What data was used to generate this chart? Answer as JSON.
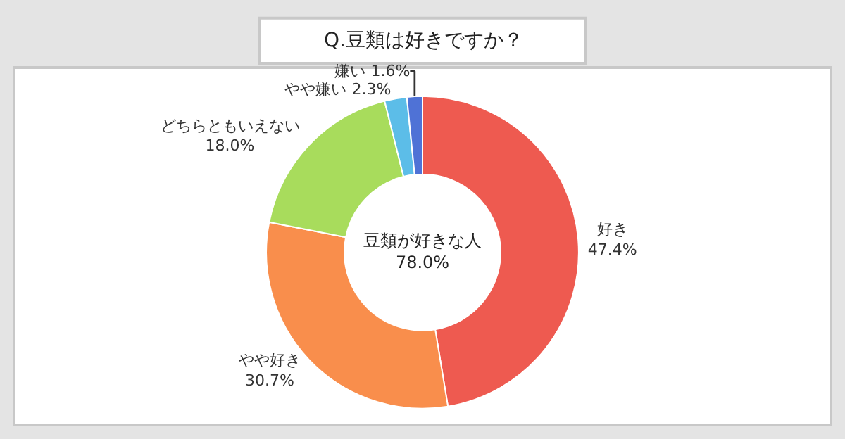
{
  "chart_data": {
    "type": "donut",
    "title": "Q.豆類は好きですか？",
    "categories": [
      "好き",
      "やや好き",
      "どちらともいえない",
      "やや嫌い",
      "嫌い"
    ],
    "values": [
      47.4,
      30.7,
      18.0,
      2.3,
      1.6
    ],
    "colors": [
      "#ee5a50",
      "#f98e4c",
      "#a8dc5c",
      "#5cbde8",
      "#4f72d6"
    ],
    "value_labels": [
      "47.4%",
      "30.7%",
      "18.0%",
      "2.3%",
      "1.6%"
    ],
    "annotations": [
      "豆類が好きな人\n78.0%"
    ],
    "legend": false
  }
}
